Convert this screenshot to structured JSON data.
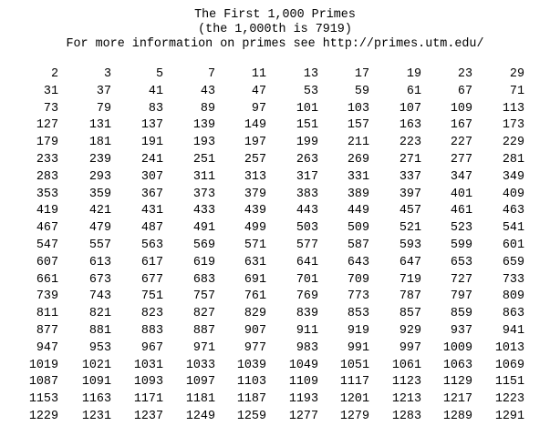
{
  "header": {
    "title": "The First 1,000 Primes",
    "subtitle": "(the 1,000th is 7919)",
    "info": "For more information on primes see http://primes.utm.edu/"
  },
  "primes": {
    "rows": [
      [
        "2",
        "3",
        "5",
        "7",
        "11",
        "13",
        "17",
        "19",
        "23",
        "29"
      ],
      [
        "31",
        "37",
        "41",
        "43",
        "47",
        "53",
        "59",
        "61",
        "67",
        "71"
      ],
      [
        "73",
        "79",
        "83",
        "89",
        "97",
        "101",
        "103",
        "107",
        "109",
        "113"
      ],
      [
        "127",
        "131",
        "137",
        "139",
        "149",
        "151",
        "157",
        "163",
        "167",
        "173"
      ],
      [
        "179",
        "181",
        "191",
        "193",
        "197",
        "199",
        "211",
        "223",
        "227",
        "229"
      ],
      [
        "233",
        "239",
        "241",
        "251",
        "257",
        "263",
        "269",
        "271",
        "277",
        "281"
      ],
      [
        "283",
        "293",
        "307",
        "311",
        "313",
        "317",
        "331",
        "337",
        "347",
        "349"
      ],
      [
        "353",
        "359",
        "367",
        "373",
        "379",
        "383",
        "389",
        "397",
        "401",
        "409"
      ],
      [
        "419",
        "421",
        "431",
        "433",
        "439",
        "443",
        "449",
        "457",
        "461",
        "463"
      ],
      [
        "467",
        "479",
        "487",
        "491",
        "499",
        "503",
        "509",
        "521",
        "523",
        "541"
      ],
      [
        "547",
        "557",
        "563",
        "569",
        "571",
        "577",
        "587",
        "593",
        "599",
        "601"
      ],
      [
        "607",
        "613",
        "617",
        "619",
        "631",
        "641",
        "643",
        "647",
        "653",
        "659"
      ],
      [
        "661",
        "673",
        "677",
        "683",
        "691",
        "701",
        "709",
        "719",
        "727",
        "733"
      ],
      [
        "739",
        "743",
        "751",
        "757",
        "761",
        "769",
        "773",
        "787",
        "797",
        "809"
      ],
      [
        "811",
        "821",
        "823",
        "827",
        "829",
        "839",
        "853",
        "857",
        "859",
        "863"
      ],
      [
        "877",
        "881",
        "883",
        "887",
        "907",
        "911",
        "919",
        "929",
        "937",
        "941"
      ],
      [
        "947",
        "953",
        "967",
        "971",
        "977",
        "983",
        "991",
        "997",
        "1009",
        "1013"
      ],
      [
        "1019",
        "1021",
        "1031",
        "1033",
        "1039",
        "1049",
        "1051",
        "1061",
        "1063",
        "1069"
      ],
      [
        "1087",
        "1091",
        "1093",
        "1097",
        "1103",
        "1109",
        "1117",
        "1123",
        "1129",
        "1151"
      ],
      [
        "1153",
        "1163",
        "1171",
        "1181",
        "1187",
        "1193",
        "1201",
        "1213",
        "1217",
        "1223"
      ],
      [
        "1229",
        "1231",
        "1237",
        "1249",
        "1259",
        "1277",
        "1279",
        "1283",
        "1289",
        "1291"
      ]
    ]
  }
}
